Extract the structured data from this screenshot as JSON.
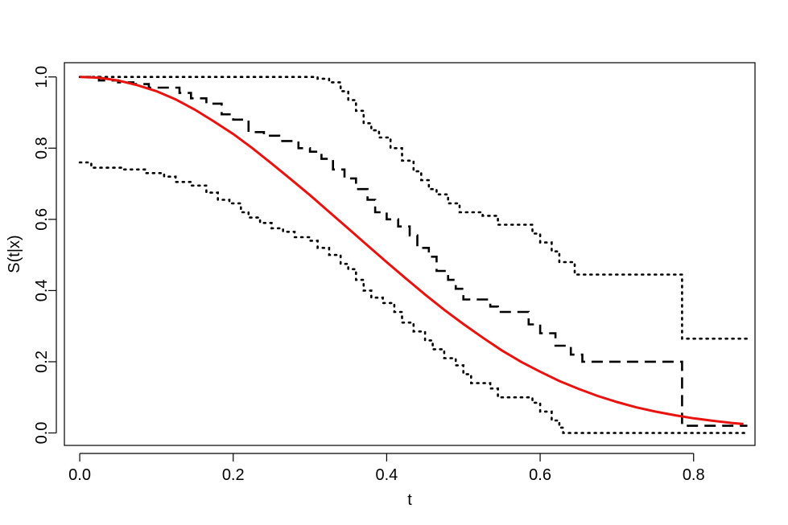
{
  "chart_data": {
    "type": "line",
    "title": "",
    "xlabel": "t",
    "ylabel": "S(t|x)",
    "xlim": [
      -0.02,
      0.88
    ],
    "ylim": [
      -0.035,
      1.04
    ],
    "xticks": [
      0.0,
      0.2,
      0.4,
      0.6,
      0.8
    ],
    "xtick_labels": [
      "0.0",
      "0.2",
      "0.4",
      "0.6",
      "0.8"
    ],
    "yticks": [
      0.0,
      0.2,
      0.4,
      0.6,
      0.8,
      1.0
    ],
    "ytick_labels": [
      "0.0",
      "0.2",
      "0.4",
      "0.6",
      "0.8",
      "1.0"
    ],
    "grid": false,
    "legend": "none",
    "series": [
      {
        "style": "dashed",
        "color": "#000000",
        "step": true,
        "points": [
          [
            0.0,
            1.0
          ],
          [
            0.025,
            0.99
          ],
          [
            0.05,
            0.985
          ],
          [
            0.07,
            0.98
          ],
          [
            0.09,
            0.97
          ],
          [
            0.13,
            0.955
          ],
          [
            0.145,
            0.94
          ],
          [
            0.165,
            0.925
          ],
          [
            0.185,
            0.895
          ],
          [
            0.2,
            0.88
          ],
          [
            0.22,
            0.845
          ],
          [
            0.24,
            0.835
          ],
          [
            0.26,
            0.82
          ],
          [
            0.285,
            0.8
          ],
          [
            0.3,
            0.79
          ],
          [
            0.315,
            0.77
          ],
          [
            0.33,
            0.74
          ],
          [
            0.345,
            0.715
          ],
          [
            0.36,
            0.685
          ],
          [
            0.375,
            0.655
          ],
          [
            0.385,
            0.62
          ],
          [
            0.4,
            0.6
          ],
          [
            0.415,
            0.58
          ],
          [
            0.43,
            0.555
          ],
          [
            0.44,
            0.52
          ],
          [
            0.455,
            0.495
          ],
          [
            0.465,
            0.455
          ],
          [
            0.48,
            0.43
          ],
          [
            0.49,
            0.405
          ],
          [
            0.5,
            0.375
          ],
          [
            0.535,
            0.355
          ],
          [
            0.545,
            0.34
          ],
          [
            0.585,
            0.305
          ],
          [
            0.6,
            0.28
          ],
          [
            0.62,
            0.245
          ],
          [
            0.64,
            0.22
          ],
          [
            0.655,
            0.2
          ],
          [
            0.785,
            0.02
          ],
          [
            0.87,
            0.02
          ]
        ]
      },
      {
        "style": "dotted",
        "color": "#000000",
        "step": true,
        "points": [
          [
            0.0,
            1.0
          ],
          [
            0.31,
            0.995
          ],
          [
            0.325,
            0.985
          ],
          [
            0.34,
            0.96
          ],
          [
            0.35,
            0.935
          ],
          [
            0.36,
            0.905
          ],
          [
            0.37,
            0.87
          ],
          [
            0.38,
            0.85
          ],
          [
            0.39,
            0.83
          ],
          [
            0.405,
            0.8
          ],
          [
            0.42,
            0.765
          ],
          [
            0.435,
            0.735
          ],
          [
            0.445,
            0.71
          ],
          [
            0.455,
            0.685
          ],
          [
            0.465,
            0.67
          ],
          [
            0.48,
            0.645
          ],
          [
            0.495,
            0.62
          ],
          [
            0.525,
            0.61
          ],
          [
            0.545,
            0.585
          ],
          [
            0.59,
            0.56
          ],
          [
            0.6,
            0.535
          ],
          [
            0.615,
            0.51
          ],
          [
            0.625,
            0.48
          ],
          [
            0.645,
            0.445
          ],
          [
            0.785,
            0.265
          ],
          [
            0.87,
            0.265
          ]
        ]
      },
      {
        "style": "dotted",
        "color": "#000000",
        "step": true,
        "points": [
          [
            0.0,
            0.76
          ],
          [
            0.015,
            0.745
          ],
          [
            0.055,
            0.74
          ],
          [
            0.085,
            0.73
          ],
          [
            0.11,
            0.72
          ],
          [
            0.125,
            0.705
          ],
          [
            0.145,
            0.695
          ],
          [
            0.165,
            0.675
          ],
          [
            0.18,
            0.655
          ],
          [
            0.195,
            0.645
          ],
          [
            0.21,
            0.62
          ],
          [
            0.22,
            0.605
          ],
          [
            0.235,
            0.59
          ],
          [
            0.25,
            0.575
          ],
          [
            0.265,
            0.565
          ],
          [
            0.28,
            0.55
          ],
          [
            0.3,
            0.54
          ],
          [
            0.31,
            0.52
          ],
          [
            0.325,
            0.5
          ],
          [
            0.34,
            0.475
          ],
          [
            0.35,
            0.46
          ],
          [
            0.36,
            0.43
          ],
          [
            0.37,
            0.4
          ],
          [
            0.38,
            0.38
          ],
          [
            0.395,
            0.365
          ],
          [
            0.41,
            0.34
          ],
          [
            0.42,
            0.31
          ],
          [
            0.435,
            0.285
          ],
          [
            0.45,
            0.26
          ],
          [
            0.46,
            0.235
          ],
          [
            0.475,
            0.21
          ],
          [
            0.49,
            0.19
          ],
          [
            0.5,
            0.165
          ],
          [
            0.51,
            0.14
          ],
          [
            0.535,
            0.125
          ],
          [
            0.545,
            0.1
          ],
          [
            0.59,
            0.085
          ],
          [
            0.6,
            0.06
          ],
          [
            0.615,
            0.035
          ],
          [
            0.625,
            0.015
          ],
          [
            0.63,
            0.0
          ],
          [
            0.87,
            0.0
          ]
        ]
      },
      {
        "style": "solid",
        "color": "#e8120f",
        "step": false,
        "points": [
          [
            0.0,
            1.0
          ],
          [
            0.025,
            0.998
          ],
          [
            0.05,
            0.99
          ],
          [
            0.075,
            0.977
          ],
          [
            0.1,
            0.96
          ],
          [
            0.125,
            0.937
          ],
          [
            0.15,
            0.908
          ],
          [
            0.175,
            0.875
          ],
          [
            0.2,
            0.84
          ],
          [
            0.225,
            0.8
          ],
          [
            0.25,
            0.757
          ],
          [
            0.275,
            0.713
          ],
          [
            0.3,
            0.668
          ],
          [
            0.325,
            0.621
          ],
          [
            0.35,
            0.574
          ],
          [
            0.375,
            0.527
          ],
          [
            0.4,
            0.48
          ],
          [
            0.425,
            0.434
          ],
          [
            0.45,
            0.389
          ],
          [
            0.475,
            0.346
          ],
          [
            0.5,
            0.306
          ],
          [
            0.525,
            0.268
          ],
          [
            0.55,
            0.232
          ],
          [
            0.575,
            0.2
          ],
          [
            0.6,
            0.172
          ],
          [
            0.625,
            0.146
          ],
          [
            0.65,
            0.124
          ],
          [
            0.675,
            0.104
          ],
          [
            0.7,
            0.087
          ],
          [
            0.725,
            0.072
          ],
          [
            0.75,
            0.06
          ],
          [
            0.775,
            0.05
          ],
          [
            0.8,
            0.041
          ],
          [
            0.825,
            0.034
          ],
          [
            0.85,
            0.028
          ],
          [
            0.865,
            0.025
          ]
        ]
      }
    ]
  }
}
